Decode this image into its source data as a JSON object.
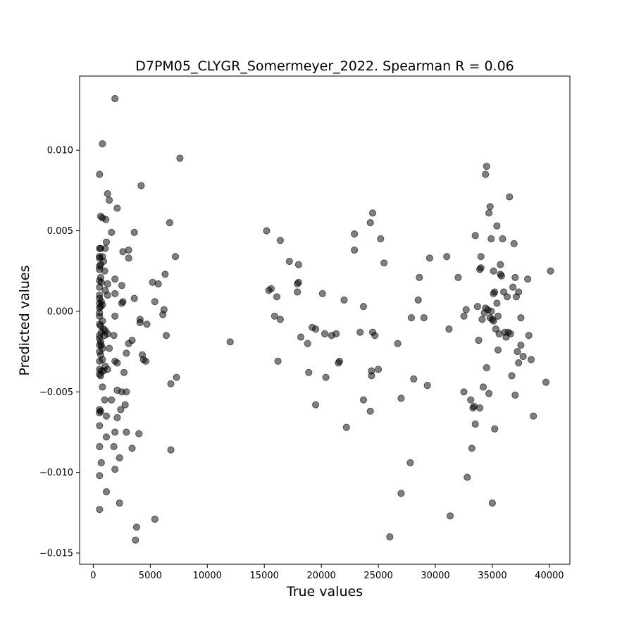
{
  "chart_data": {
    "type": "scatter",
    "title": "D7PM05_CLYGR_Somermeyer_2022. Spearman R = 0.06",
    "xlabel": "True values",
    "ylabel": "Predicted values",
    "xlim": [
      -1200,
      41800
    ],
    "ylim": [
      -0.0157,
      0.0146
    ],
    "xticks": [
      0,
      5000,
      10000,
      15000,
      20000,
      25000,
      30000,
      35000,
      40000
    ],
    "xtick_labels": [
      "0",
      "5000",
      "10000",
      "15000",
      "20000",
      "25000",
      "30000",
      "35000",
      "40000"
    ],
    "yticks": [
      -0.015,
      -0.01,
      -0.005,
      0.0,
      0.005,
      0.01
    ],
    "ytick_labels": [
      "−0.015",
      "−0.010",
      "−0.005",
      "0.000",
      "0.005",
      "0.010"
    ],
    "grid": false,
    "marker_color": "#000000",
    "marker_alpha": 0.5,
    "points": [
      [
        550,
        0.0085
      ],
      [
        550,
        0.0039
      ],
      [
        550,
        0.0034
      ],
      [
        550,
        0.0033
      ],
      [
        550,
        0.0028
      ],
      [
        550,
        0.0026
      ],
      [
        550,
        0.0019
      ],
      [
        550,
        0.0015
      ],
      [
        550,
        0.001
      ],
      [
        550,
        0.0008
      ],
      [
        550,
        0.0005
      ],
      [
        550,
        0.0002
      ],
      [
        550,
        -0.0001
      ],
      [
        550,
        -0.0003
      ],
      [
        550,
        -0.0008
      ],
      [
        550,
        -0.0015
      ],
      [
        550,
        -0.0017
      ],
      [
        550,
        -0.0021
      ],
      [
        550,
        -0.0025
      ],
      [
        550,
        -0.0031
      ],
      [
        550,
        -0.0036
      ],
      [
        550,
        -0.0039
      ],
      [
        550,
        -0.0061
      ],
      [
        550,
        -0.0063
      ],
      [
        550,
        -0.0071
      ],
      [
        550,
        -0.0084
      ],
      [
        550,
        -0.0102
      ],
      [
        550,
        -0.0123
      ],
      [
        650,
        0.0059
      ],
      [
        650,
        0.0039
      ],
      [
        650,
        0.0029
      ],
      [
        650,
        0.0021
      ],
      [
        650,
        0.0003
      ],
      [
        650,
        -0.0009
      ],
      [
        650,
        -0.0019
      ],
      [
        650,
        -0.0027
      ],
      [
        650,
        -0.004
      ],
      [
        650,
        -0.0062
      ],
      [
        700,
        0.0018
      ],
      [
        700,
        0.0006
      ],
      [
        700,
        -0.0013
      ],
      [
        700,
        -0.0021
      ],
      [
        700,
        -0.0037
      ],
      [
        700,
        -0.0094
      ],
      [
        800,
        0.0104
      ],
      [
        800,
        0.0058
      ],
      [
        800,
        0.0034
      ],
      [
        800,
        0.0004
      ],
      [
        800,
        -0.0006
      ],
      [
        800,
        -0.0023
      ],
      [
        800,
        -0.003
      ],
      [
        800,
        -0.0047
      ],
      [
        900,
        0.0031
      ],
      [
        900,
        -0.0011
      ],
      [
        900,
        -0.0037
      ],
      [
        1000,
        0.0025
      ],
      [
        1000,
        -0.0015
      ],
      [
        1000,
        -0.0055
      ],
      [
        1050,
        0.0039
      ],
      [
        1050,
        0.0013
      ],
      [
        1050,
        -0.0012
      ],
      [
        1050,
        -0.0034
      ],
      [
        1100,
        0.0057
      ],
      [
        1150,
        0.0043
      ],
      [
        1150,
        -0.0065
      ],
      [
        1150,
        -0.0078
      ],
      [
        1150,
        -0.0112
      ],
      [
        1250,
        0.0073
      ],
      [
        1250,
        0.0017
      ],
      [
        1250,
        0.001
      ],
      [
        1250,
        -0.0014
      ],
      [
        1250,
        -0.0036
      ],
      [
        1400,
        0.0069
      ],
      [
        1400,
        -0.0023
      ],
      [
        1600,
        0.0049
      ],
      [
        1600,
        -0.0055
      ],
      [
        1800,
        -0.0015
      ],
      [
        1800,
        -0.0084
      ],
      [
        1900,
        0.0132
      ],
      [
        1900,
        0.002
      ],
      [
        1900,
        0.0011
      ],
      [
        1900,
        -0.0003
      ],
      [
        1900,
        -0.0031
      ],
      [
        1900,
        -0.0075
      ],
      [
        1900,
        -0.0098
      ],
      [
        2100,
        0.0064
      ],
      [
        2100,
        -0.0032
      ],
      [
        2100,
        -0.0049
      ],
      [
        2100,
        -0.0066
      ],
      [
        2300,
        -0.0091
      ],
      [
        2300,
        -0.0119
      ],
      [
        2400,
        -0.0061
      ],
      [
        2500,
        0.0016
      ],
      [
        2500,
        0.0005
      ],
      [
        2500,
        -0.005
      ],
      [
        2600,
        0.0037
      ],
      [
        2600,
        0.0006
      ],
      [
        2700,
        -0.0038
      ],
      [
        2800,
        -0.0058
      ],
      [
        2900,
        -0.0026
      ],
      [
        2900,
        -0.005
      ],
      [
        2900,
        -0.0075
      ],
      [
        3100,
        0.0038
      ],
      [
        3100,
        0.0033
      ],
      [
        3100,
        -0.002
      ],
      [
        3400,
        -0.0018
      ],
      [
        3400,
        -0.0085
      ],
      [
        3600,
        0.0049
      ],
      [
        3600,
        0.0008
      ],
      [
        3700,
        -0.0142
      ],
      [
        3800,
        -0.0134
      ],
      [
        4000,
        -0.0076
      ],
      [
        4100,
        -0.0005
      ],
      [
        4100,
        -0.0007
      ],
      [
        4200,
        0.0078
      ],
      [
        4300,
        -0.0027
      ],
      [
        4400,
        -0.003
      ],
      [
        4600,
        -0.0031
      ],
      [
        4700,
        -0.0008
      ],
      [
        5200,
        0.0018
      ],
      [
        5400,
        0.0006
      ],
      [
        5400,
        -0.0129
      ],
      [
        5700,
        0.0017
      ],
      [
        6100,
        -0.0002
      ],
      [
        6200,
        0.0001
      ],
      [
        6300,
        0.0023
      ],
      [
        6400,
        -0.0015
      ],
      [
        6700,
        0.0055
      ],
      [
        6800,
        -0.0045
      ],
      [
        6800,
        -0.0086
      ],
      [
        7200,
        0.0034
      ],
      [
        7300,
        -0.0041
      ],
      [
        7600,
        0.0095
      ],
      [
        12000,
        -0.0019
      ],
      [
        15200,
        0.005
      ],
      [
        15400,
        0.0013
      ],
      [
        15600,
        0.0014
      ],
      [
        15900,
        -0.0003
      ],
      [
        16100,
        0.0009
      ],
      [
        16200,
        -0.0031
      ],
      [
        16400,
        0.0044
      ],
      [
        16400,
        -0.0005
      ],
      [
        17200,
        0.0031
      ],
      [
        17900,
        0.0012
      ],
      [
        17900,
        0.0017
      ],
      [
        18000,
        0.0018
      ],
      [
        18000,
        0.0029
      ],
      [
        18200,
        -0.0016
      ],
      [
        18800,
        -0.002
      ],
      [
        18900,
        -0.0038
      ],
      [
        19200,
        -0.001
      ],
      [
        19500,
        -0.0058
      ],
      [
        19500,
        -0.0011
      ],
      [
        20100,
        0.0011
      ],
      [
        20300,
        -0.0014
      ],
      [
        20400,
        -0.0041
      ],
      [
        20900,
        -0.0015
      ],
      [
        21300,
        -0.0014
      ],
      [
        21500,
        -0.0032
      ],
      [
        21600,
        -0.0031
      ],
      [
        22000,
        0.0007
      ],
      [
        22200,
        -0.0072
      ],
      [
        22900,
        0.0048
      ],
      [
        22900,
        0.0038
      ],
      [
        23400,
        -0.0013
      ],
      [
        23700,
        0.0003
      ],
      [
        23700,
        -0.0055
      ],
      [
        24300,
        0.0055
      ],
      [
        24300,
        -0.0062
      ],
      [
        24400,
        -0.0037
      ],
      [
        24400,
        -0.004
      ],
      [
        24500,
        0.0061
      ],
      [
        24500,
        -0.0013
      ],
      [
        24700,
        -0.0015
      ],
      [
        25000,
        -0.0036
      ],
      [
        25200,
        0.0045
      ],
      [
        25500,
        0.003
      ],
      [
        26000,
        -0.014
      ],
      [
        26700,
        -0.002
      ],
      [
        27000,
        -0.0054
      ],
      [
        27000,
        -0.0113
      ],
      [
        27800,
        -0.0094
      ],
      [
        27900,
        -0.0004
      ],
      [
        28100,
        -0.0042
      ],
      [
        28500,
        0.0007
      ],
      [
        28600,
        0.0021
      ],
      [
        29000,
        -0.0004
      ],
      [
        29300,
        -0.0046
      ],
      [
        29500,
        0.0033
      ],
      [
        31000,
        0.0034
      ],
      [
        31200,
        -0.0011
      ],
      [
        31300,
        -0.0127
      ],
      [
        32000,
        0.0021
      ],
      [
        32500,
        -0.0003
      ],
      [
        32500,
        -0.005
      ],
      [
        32700,
        0.0001
      ],
      [
        32800,
        -0.0103
      ],
      [
        33100,
        -0.0055
      ],
      [
        33200,
        -0.0085
      ],
      [
        33300,
        -0.006
      ],
      [
        33400,
        -0.0059
      ],
      [
        33500,
        0.0047
      ],
      [
        33500,
        -0.007
      ],
      [
        33700,
        0.0003
      ],
      [
        33800,
        -0.0018
      ],
      [
        33900,
        0.0026
      ],
      [
        33900,
        -0.006
      ],
      [
        34000,
        0.0034
      ],
      [
        34000,
        0.0027
      ],
      [
        34100,
        -0.0005
      ],
      [
        34200,
        -0.0047
      ],
      [
        34300,
        -0.0001
      ],
      [
        34400,
        0.0085
      ],
      [
        34400,
        0.0002
      ],
      [
        34500,
        0.009
      ],
      [
        34500,
        -0.0035
      ],
      [
        34600,
        0.0001
      ],
      [
        34700,
        0.0061
      ],
      [
        34700,
        -0.0051
      ],
      [
        34800,
        0.0065
      ],
      [
        34800,
        -0.0004
      ],
      [
        34900,
        0.0045
      ],
      [
        34900,
        0.0
      ],
      [
        35000,
        -0.0005
      ],
      [
        35000,
        -0.0119
      ],
      [
        35100,
        0.0025
      ],
      [
        35100,
        0.0011
      ],
      [
        35100,
        -0.0006
      ],
      [
        35200,
        0.0012
      ],
      [
        35200,
        -0.0073
      ],
      [
        35300,
        -0.0011
      ],
      [
        35400,
        0.0005
      ],
      [
        35400,
        0.0053
      ],
      [
        35500,
        -0.0003
      ],
      [
        35500,
        -0.0024
      ],
      [
        35600,
        -0.0014
      ],
      [
        35700,
        0.0029
      ],
      [
        35700,
        0.0023
      ],
      [
        35800,
        0.0022
      ],
      [
        35900,
        0.0045
      ],
      [
        36000,
        0.0012
      ],
      [
        36100,
        -0.0013
      ],
      [
        36200,
        -0.0016
      ],
      [
        36300,
        0.0009
      ],
      [
        36400,
        -0.0013
      ],
      [
        36500,
        0.0071
      ],
      [
        36600,
        -0.0014
      ],
      [
        36700,
        -0.004
      ],
      [
        36800,
        0.0015
      ],
      [
        36900,
        0.0042
      ],
      [
        37000,
        0.0021
      ],
      [
        37000,
        -0.0052
      ],
      [
        37100,
        0.0009
      ],
      [
        37200,
        -0.0025
      ],
      [
        37300,
        -0.0032
      ],
      [
        37300,
        0.0012
      ],
      [
        37500,
        -0.0004
      ],
      [
        37500,
        -0.0021
      ],
      [
        37700,
        -0.0028
      ],
      [
        38100,
        0.002
      ],
      [
        38200,
        -0.0015
      ],
      [
        38400,
        -0.003
      ],
      [
        38600,
        -0.0065
      ],
      [
        39700,
        -0.0044
      ],
      [
        40100,
        0.0025
      ]
    ]
  }
}
